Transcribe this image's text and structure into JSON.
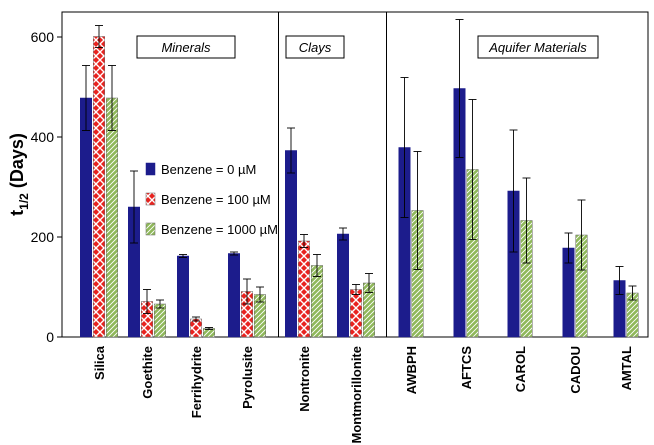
{
  "chart_data": {
    "type": "bar",
    "ylabel": "t",
    "ylabel_sub": "1/2",
    "ylabel_suffix": " (Days)",
    "ylim": [
      0,
      650
    ],
    "yticks": [
      0,
      200,
      400,
      600
    ],
    "grid": false,
    "legend_position": "center-left",
    "groups": [
      {
        "label": "Minerals",
        "categories": [
          "Silica",
          "Goethite",
          "Ferrihydrite",
          "Pyrolusite"
        ]
      },
      {
        "label": "Clays",
        "categories": [
          "Nontronite",
          "Montmorillonite"
        ]
      },
      {
        "label": "Aquifer Materials",
        "categories": [
          "AWBPH",
          "AFTCS",
          "CAROL",
          "CADOU",
          "AMTAL"
        ]
      }
    ],
    "categories": [
      "Silica",
      "Goethite",
      "Ferrihydrite",
      "Pyrolusite",
      "Nontronite",
      "Montmorillonite",
      "AWBPH",
      "AFTCS",
      "CAROL",
      "CADOU",
      "AMTAL"
    ],
    "series": [
      {
        "name": "Benzene = 0 µM",
        "color": "#1c1c8c",
        "values": [
          478,
          260,
          162,
          167,
          373,
          206,
          379,
          497,
          292,
          178,
          113
        ],
        "errors": [
          65,
          72,
          3,
          3,
          45,
          12,
          140,
          138,
          122,
          30,
          28
        ]
      },
      {
        "name": "Benzene = 100 µM",
        "color": "#e8231f",
        "values": [
          601,
          71,
          36,
          91,
          192,
          95,
          null,
          null,
          null,
          null,
          null
        ],
        "errors": [
          22,
          24,
          4,
          25,
          13,
          10,
          null,
          null,
          null,
          null,
          null
        ]
      },
      {
        "name": "Benzene = 1000 µM",
        "color": "#8fb85a",
        "values": [
          478,
          66,
          17,
          85,
          143,
          108,
          253,
          335,
          233,
          204,
          88
        ],
        "errors": [
          65,
          8,
          2,
          15,
          22,
          19,
          118,
          140,
          85,
          70,
          14
        ]
      }
    ]
  }
}
